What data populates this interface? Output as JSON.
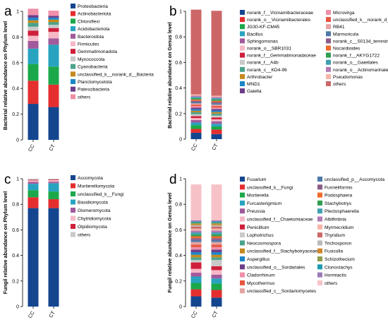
{
  "chart_data": [
    {
      "type": "bar",
      "panel_label": "a",
      "ylabel": "Bacterial relative abundance on Phylum level",
      "categories": [
        "CC",
        "CT"
      ],
      "ylim": [
        0,
        1
      ],
      "y_ticks": [
        "0",
        "0.2",
        "0.4",
        "0.6",
        "0.8",
        "1"
      ],
      "legend_columns": 1,
      "series": [
        {
          "name": "Proteobacteria",
          "color": "#14468f",
          "values": [
            0.28,
            0.255
          ]
        },
        {
          "name": "Actinobacteriota",
          "color": "#e52e2e",
          "values": [
            0.18,
            0.175
          ]
        },
        {
          "name": "Chloroflexi",
          "color": "#1ba84a",
          "values": [
            0.13,
            0.14
          ]
        },
        {
          "name": "Acidobacteriota",
          "color": "#27a3c0",
          "values": [
            0.12,
            0.17
          ]
        },
        {
          "name": "Bacteroidota",
          "color": "#a15a9b",
          "values": [
            0.06,
            0.05
          ]
        },
        {
          "name": "Firmicutes",
          "color": "#f6b8c6",
          "values": [
            0.04,
            0.05
          ]
        },
        {
          "name": "Gemmatimonadota",
          "color": "#cf1f3a",
          "values": [
            0.04,
            0.03
          ]
        },
        {
          "name": "Myxococcota",
          "color": "#c9c9c9",
          "values": [
            0.03,
            0.025
          ]
        },
        {
          "name": "Cyanobacteria",
          "color": "#4aa38b",
          "values": [
            0.03,
            0.02
          ]
        },
        {
          "name": "unclassified_k__norank_d__Bacteria",
          "color": "#c48a1e",
          "values": [
            0.02,
            0.02
          ]
        },
        {
          "name": "Planctomycetota",
          "color": "#1985c8",
          "values": [
            0.02,
            0.015
          ]
        },
        {
          "name": "Patescibacteria",
          "color": "#6b3e8b",
          "values": [
            0.02,
            0.015
          ]
        },
        {
          "name": "others",
          "color": "#ef8fa8",
          "values": [
            0.05,
            0.04
          ]
        }
      ]
    },
    {
      "type": "bar",
      "panel_label": "b",
      "ylabel": "Bacterial relative abundance on Genus level",
      "categories": [
        "CC",
        "CT"
      ],
      "ylim": [
        0,
        1
      ],
      "y_ticks": [
        "0",
        "0.2",
        "0.4",
        "0.6",
        "0.8",
        "1"
      ],
      "legend_columns": 2,
      "series": [
        {
          "name": "norank_f__Vicinamibacteraceae",
          "color": "#14468f",
          "values": [
            0.05,
            0.04
          ]
        },
        {
          "name": "norank_o__Vicinamibacterales",
          "color": "#e52e2e",
          "values": [
            0.03,
            0.035
          ]
        },
        {
          "name": "JG30-KF-CM45",
          "color": "#1ba84a",
          "values": [
            0.03,
            0.025
          ]
        },
        {
          "name": "Bacillus",
          "color": "#27a3c0",
          "values": [
            0.02,
            0.02
          ]
        },
        {
          "name": "Sphingomonas",
          "color": "#a15a9b",
          "values": [
            0.02,
            0.02
          ]
        },
        {
          "name": "norank_o__SBR1031",
          "color": "#f6b8c6",
          "values": [
            0.015,
            0.015
          ]
        },
        {
          "name": "norank_f__Gemmatimonadaceae",
          "color": "#cf1f3a",
          "values": [
            0.015,
            0.015
          ]
        },
        {
          "name": "norank_f__A4b",
          "color": "#c9c9c9",
          "values": [
            0.015,
            0.015
          ]
        },
        {
          "name": "norank_c__KD4-96",
          "color": "#4aa38b",
          "values": [
            0.015,
            0.015
          ]
        },
        {
          "name": "Arthrobacter",
          "color": "#c48a1e",
          "values": [
            0.012,
            0.012
          ]
        },
        {
          "name": "MND1",
          "color": "#1985c8",
          "values": [
            0.012,
            0.012
          ]
        },
        {
          "name": "Gaiella",
          "color": "#6b3e8b",
          "values": [
            0.012,
            0.012
          ]
        },
        {
          "name": "Microvirga",
          "color": "#ef8fa8",
          "values": [
            0.012,
            0.012
          ]
        },
        {
          "name": "unclassified_k__norank_d__Bacteria",
          "color": "#e8553f",
          "values": [
            0.012,
            0.012
          ]
        },
        {
          "name": "RB41",
          "color": "#e5a3a3",
          "values": [
            0.01,
            0.01
          ]
        },
        {
          "name": "Marmoricola",
          "color": "#4e78a8",
          "values": [
            0.01,
            0.01
          ]
        },
        {
          "name": "norank_c__S0134_terrestrial_group",
          "color": "#8a5b86",
          "values": [
            0.01,
            0.01
          ]
        },
        {
          "name": "Nocardioides",
          "color": "#f06a2a",
          "values": [
            0.01,
            0.01
          ]
        },
        {
          "name": "norank_f__AKYG1722",
          "color": "#2f9e50",
          "values": [
            0.01,
            0.01
          ]
        },
        {
          "name": "norank_o__Gaiellales",
          "color": "#3f9fb0",
          "values": [
            0.01,
            0.01
          ]
        },
        {
          "name": "norank_o__Actinomarinales",
          "color": "#b07ab4",
          "values": [
            0.01,
            0.01
          ]
        },
        {
          "name": "Pseudomonas",
          "color": "#f5b6a8",
          "values": [
            0.01,
            0.01
          ]
        },
        {
          "name": "others",
          "color": "#cd6767",
          "values": [
            0.663,
            0.664
          ]
        }
      ]
    },
    {
      "type": "bar",
      "panel_label": "c",
      "ylabel": "Fungil relative abundance on Phylum level",
      "categories": [
        "CC",
        "CT"
      ],
      "ylim": [
        0,
        1
      ],
      "y_ticks": [
        "0",
        "0.2",
        "0.4",
        "0.6",
        "0.8",
        "1"
      ],
      "legend_columns": 1,
      "series": [
        {
          "name": "Ascomycota",
          "color": "#14468f",
          "values": [
            0.77,
            0.77
          ]
        },
        {
          "name": "Mortierellomycota",
          "color": "#e52e2e",
          "values": [
            0.085,
            0.07
          ]
        },
        {
          "name": "unclassified_k__Fungi",
          "color": "#1ba84a",
          "values": [
            0.055,
            0.06
          ]
        },
        {
          "name": "Basidiomycota",
          "color": "#27a3c0",
          "values": [
            0.05,
            0.065
          ]
        },
        {
          "name": "Glomeromycota",
          "color": "#a15a9b",
          "values": [
            0.015,
            0.012
          ]
        },
        {
          "name": "Chytridiomycota",
          "color": "#f6b8c6",
          "values": [
            0.012,
            0.012
          ]
        },
        {
          "name": "Olpidiomycota",
          "color": "#cf1f3a",
          "values": [
            0.005,
            0.005
          ]
        },
        {
          "name": "others",
          "color": "#c9c9c9",
          "values": [
            0.008,
            0.006
          ]
        }
      ]
    },
    {
      "type": "bar",
      "panel_label": "d",
      "ylabel": "Fungil relative abundance on Genus level",
      "categories": [
        "CC",
        "CT"
      ],
      "ylim": [
        0,
        1
      ],
      "y_ticks": [
        "0",
        "0.2",
        "0.4",
        "0.6",
        "0.8",
        "1"
      ],
      "legend_columns": 2,
      "series": [
        {
          "name": "Fusarium",
          "color": "#14468f",
          "values": [
            0.08,
            0.07
          ]
        },
        {
          "name": "unclassified_k__Fungi",
          "color": "#e52e2e",
          "values": [
            0.055,
            0.06
          ]
        },
        {
          "name": "Mortierella",
          "color": "#1ba84a",
          "values": [
            0.05,
            0.05
          ]
        },
        {
          "name": "Furcasterigmium",
          "color": "#27a3c0",
          "values": [
            0.05,
            0.04
          ]
        },
        {
          "name": "Preussia",
          "color": "#a15a9b",
          "values": [
            0.03,
            0.03
          ]
        },
        {
          "name": "unclassified_f__Chaetomiaceae",
          "color": "#f6b8c6",
          "values": [
            0.03,
            0.035
          ]
        },
        {
          "name": "Penicillium",
          "color": "#cf1f3a",
          "values": [
            0.05,
            0.03
          ]
        },
        {
          "name": "Lophotrichus",
          "color": "#c9c9c9",
          "values": [
            0.02,
            0.05
          ]
        },
        {
          "name": "Neocosmospora",
          "color": "#4aa38b",
          "values": [
            0.02,
            0.02
          ]
        },
        {
          "name": "unclassified_f__Stachybotryaceae",
          "color": "#c48a1e",
          "values": [
            0.02,
            0.02
          ]
        },
        {
          "name": "Aspergillus",
          "color": "#1985c8",
          "values": [
            0.02,
            0.02
          ]
        },
        {
          "name": "unclassified_o__Sordariales",
          "color": "#6b3e8b",
          "values": [
            0.02,
            0.02
          ]
        },
        {
          "name": "Cladorrhinum",
          "color": "#ef8fa8",
          "values": [
            0.02,
            0.02
          ]
        },
        {
          "name": "Mycothermus",
          "color": "#e8553f",
          "values": [
            0.02,
            0.02
          ]
        },
        {
          "name": "unclassified_c__Sordariomycetes",
          "color": "#e5a3a3",
          "values": [
            0.02,
            0.02
          ]
        },
        {
          "name": "unclassified_p__Ascomycota",
          "color": "#4e78a8",
          "values": [
            0.015,
            0.015
          ]
        },
        {
          "name": "Funneliformis",
          "color": "#8a5b86",
          "values": [
            0.015,
            0.015
          ]
        },
        {
          "name": "Podosphaera",
          "color": "#f06a2a",
          "values": [
            0.015,
            0.015
          ]
        },
        {
          "name": "Stachybotrys",
          "color": "#2f9e50",
          "values": [
            0.015,
            0.015
          ]
        },
        {
          "name": "Plectosphaerella",
          "color": "#3f9fb0",
          "values": [
            0.015,
            0.015
          ]
        },
        {
          "name": "Albifimbria",
          "color": "#b07ab4",
          "values": [
            0.015,
            0.015
          ]
        },
        {
          "name": "Myrmecridium",
          "color": "#f5b6a8",
          "values": [
            0.015,
            0.015
          ]
        },
        {
          "name": "Thyridium",
          "color": "#cd6767",
          "values": [
            0.015,
            0.015
          ]
        },
        {
          "name": "Trichosporon",
          "color": "#b9b9b9",
          "values": [
            0.01,
            0.01
          ]
        },
        {
          "name": "Fusicolla",
          "color": "#d0872a",
          "values": [
            0.01,
            0.01
          ]
        },
        {
          "name": "Schizothecium",
          "color": "#8e9e4a",
          "values": [
            0.01,
            0.01
          ]
        },
        {
          "name": "Clonostachys",
          "color": "#1e9ab0",
          "values": [
            0.01,
            0.01
          ]
        },
        {
          "name": "Hormiactis",
          "color": "#9b7ab8",
          "values": [
            0.01,
            0.01
          ]
        },
        {
          "name": "others",
          "color": "#f7c2c7",
          "values": [
            0.28,
            0.28
          ]
        }
      ]
    }
  ]
}
